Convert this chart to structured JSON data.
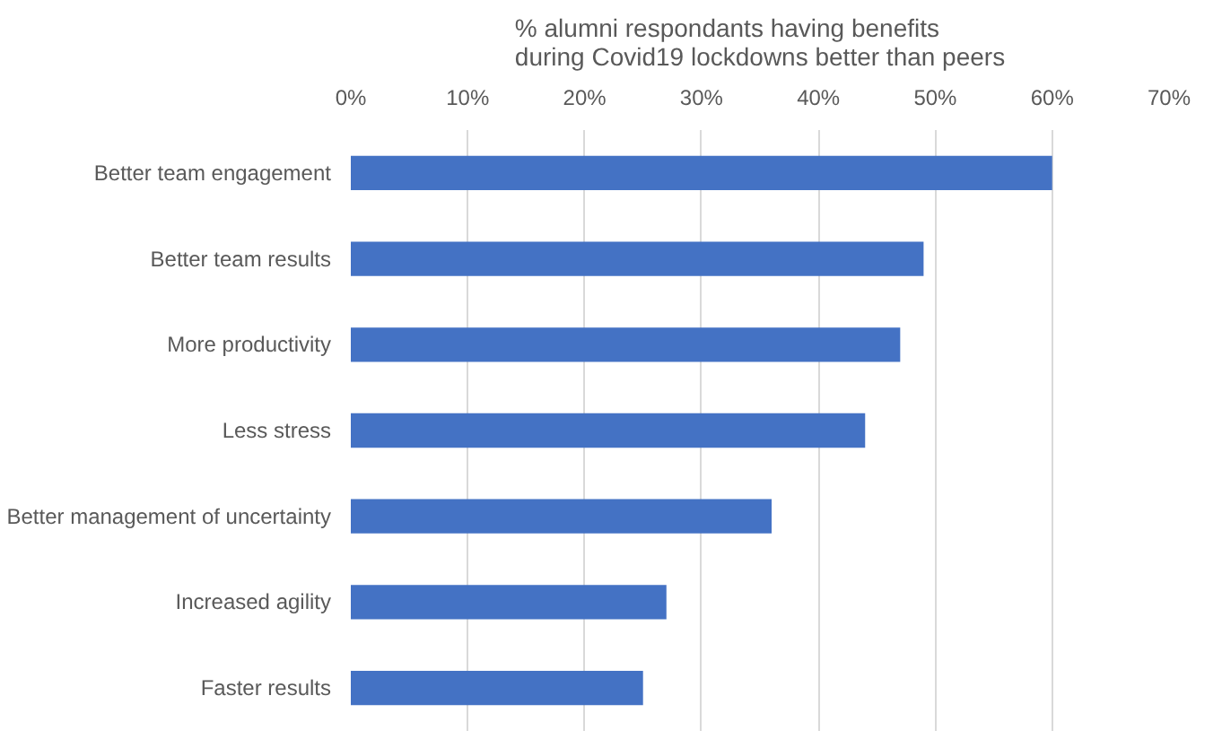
{
  "chart_data": {
    "type": "bar",
    "orientation": "horizontal",
    "title": "% alumni respondants having  benefits\nduring Covid19 lockdowns better than peers",
    "categories": [
      "Better team engagement",
      "Better team results",
      "More productivity",
      "Less stress",
      "Better management of uncertainty",
      "Increased agility",
      "Faster results"
    ],
    "values": [
      60,
      49,
      47,
      44,
      36,
      27,
      25
    ],
    "color": "#4472c4",
    "xlim": [
      0,
      70
    ],
    "xticks": [
      {
        "value": 0,
        "label": "0%"
      },
      {
        "value": 10,
        "label": "10%"
      },
      {
        "value": 20,
        "label": "20%"
      },
      {
        "value": 30,
        "label": "30%"
      },
      {
        "value": 40,
        "label": "40%"
      },
      {
        "value": 50,
        "label": "50%"
      },
      {
        "value": 60,
        "label": "60%"
      },
      {
        "value": 70,
        "label": "70%"
      }
    ],
    "grid": "x"
  }
}
